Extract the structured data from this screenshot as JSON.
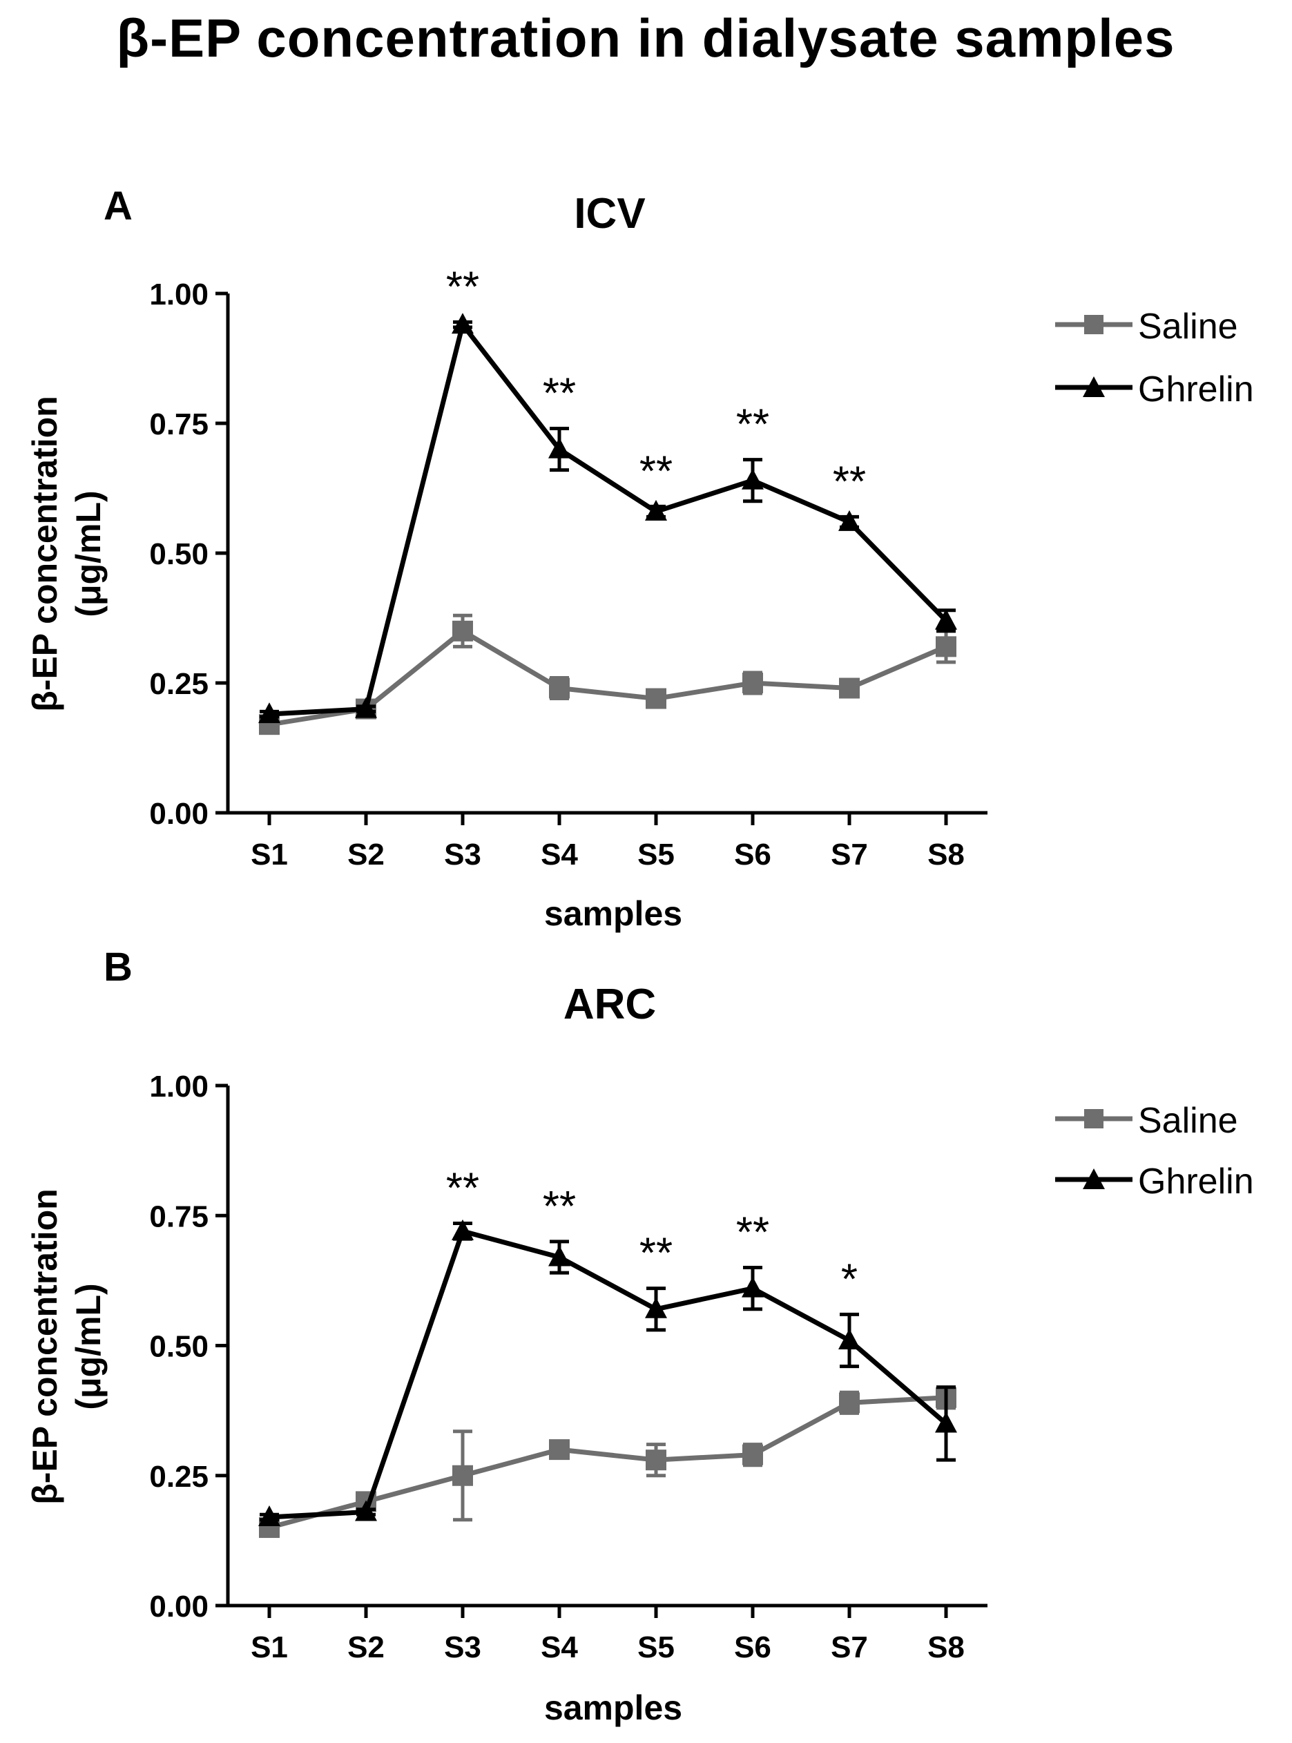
{
  "figure": {
    "title": "β-EP concentration in dialysate samples"
  },
  "colors": {
    "saline": "#6e6e6e",
    "ghrelin": "#000000",
    "axis": "#000000"
  },
  "chart_data": [
    {
      "type": "line",
      "panel": "A",
      "title": "ICV",
      "xlabel": "samples",
      "ylabel": "β-EP concentration",
      "ylabel_unit": "(μg/mL)",
      "categories": [
        "S1",
        "S2",
        "S3",
        "S4",
        "S5",
        "S6",
        "S7",
        "S8"
      ],
      "ylim": [
        0,
        1.0
      ],
      "yticks": [
        "0.00",
        "0.25",
        "0.50",
        "0.75",
        "1.00"
      ],
      "legend_position": "top-right",
      "series": [
        {
          "name": "Saline",
          "marker": "square",
          "values": [
            0.17,
            0.2,
            0.35,
            0.24,
            0.22,
            0.25,
            0.24,
            0.32
          ],
          "errors": [
            0.01,
            0.01,
            0.03,
            0.02,
            0.01,
            0.02,
            0.01,
            0.03
          ]
        },
        {
          "name": "Ghrelin",
          "marker": "triangle",
          "values": [
            0.19,
            0.2,
            0.94,
            0.7,
            0.58,
            0.64,
            0.56,
            0.37
          ],
          "errors": [
            0.005,
            0.005,
            0.005,
            0.04,
            0.01,
            0.04,
            0.01,
            0.02
          ]
        }
      ],
      "significance": [
        "",
        "",
        "**",
        "**",
        "**",
        "**",
        "**",
        ""
      ]
    },
    {
      "type": "line",
      "panel": "B",
      "title": "ARC",
      "xlabel": "samples",
      "ylabel": "β-EP concentration",
      "ylabel_unit": "(μg/mL)",
      "categories": [
        "S1",
        "S2",
        "S3",
        "S4",
        "S5",
        "S6",
        "S7",
        "S8"
      ],
      "ylim": [
        0,
        1.0
      ],
      "yticks": [
        "0.00",
        "0.25",
        "0.50",
        "0.75",
        "1.00"
      ],
      "legend_position": "top-right",
      "series": [
        {
          "name": "Saline",
          "marker": "square",
          "values": [
            0.15,
            0.2,
            0.25,
            0.3,
            0.28,
            0.29,
            0.39,
            0.4
          ],
          "errors": [
            0.005,
            0.005,
            0.085,
            0.01,
            0.03,
            0.02,
            0.02,
            0.02
          ]
        },
        {
          "name": "Ghrelin",
          "marker": "triangle",
          "values": [
            0.17,
            0.18,
            0.72,
            0.67,
            0.57,
            0.61,
            0.51,
            0.35
          ],
          "errors": [
            0.005,
            0.005,
            0.015,
            0.03,
            0.04,
            0.04,
            0.05,
            0.07
          ]
        }
      ],
      "significance": [
        "",
        "",
        "**",
        "**",
        "**",
        "**",
        "*",
        ""
      ]
    }
  ]
}
